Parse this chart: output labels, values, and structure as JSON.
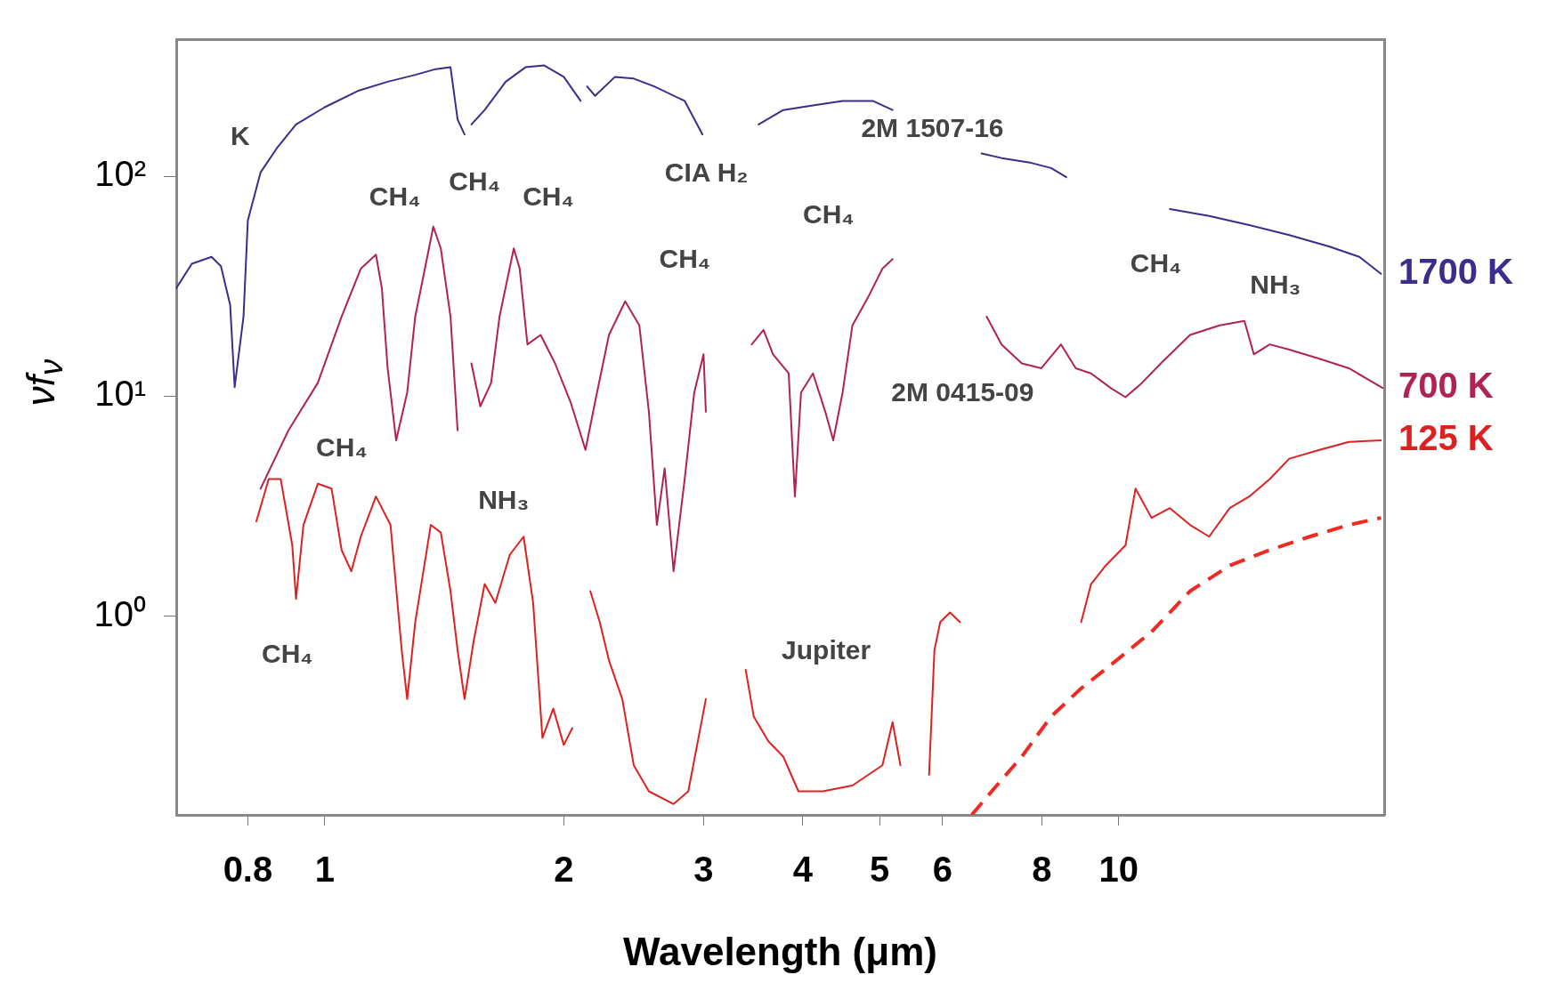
{
  "chart_data": {
    "type": "line",
    "xlabel": "Wavelength (μm)",
    "ylabel": "νf$_{ν}$",
    "log": "xy",
    "grid": false,
    "legend": "right",
    "marker": "none",
    "line_style": "solid",
    "xlim": [
      0.65,
      21.6
    ],
    "xticks": [
      0.8,
      1,
      2,
      3,
      4,
      5,
      6,
      8,
      10
    ],
    "ylim": [
      0.125,
      420
    ],
    "yticks": [
      {
        "value": 1,
        "label": "10⁰"
      },
      {
        "value": 10,
        "label": "10¹"
      },
      {
        "value": 100,
        "label": "10²"
      }
    ],
    "series": [
      {
        "name": "1700 K",
        "color": "#3b2d8c",
        "x": [
          0.65,
          0.68,
          0.72,
          0.74,
          0.76,
          0.77,
          0.79,
          0.8,
          0.83,
          0.87,
          0.92,
          1.0,
          1.1,
          1.2,
          1.3,
          1.38,
          1.44,
          1.47,
          1.5,
          null,
          1.53,
          1.59,
          1.69,
          1.79,
          1.89,
          2.0,
          2.1,
          null,
          2.14,
          2.19,
          2.32,
          2.45,
          2.6,
          2.84,
          2.99,
          null,
          3.52,
          3.78,
          4.12,
          4.49,
          4.9,
          5.19,
          null,
          6.72,
          7.12,
          7.76,
          8.22,
          8.59,
          null,
          11.6,
          13.0,
          14.6,
          16.4,
          18.4,
          20.1,
          21.4
        ],
        "values": [
          31,
          40,
          43,
          39,
          26,
          11,
          23,
          63,
          104,
          134,
          172,
          206,
          244,
          269,
          289,
          307,
          313,
          181,
          155,
          null,
          172,
          200,
          269,
          313,
          319,
          283,
          220,
          null,
          256,
          232,
          283,
          278,
          256,
          220,
          155,
          null,
          172,
          200,
          210,
          220,
          220,
          200,
          null,
          127,
          121,
          115,
          109,
          99,
          null,
          71,
          66,
          60,
          54,
          48,
          43,
          36
        ]
      },
      {
        "name": "700 K",
        "color": "#b02350",
        "x": [
          0.83,
          0.9,
          0.98,
          1.05,
          1.11,
          1.16,
          1.18,
          1.2,
          1.23,
          1.27,
          1.3,
          1.37,
          1.4,
          1.44,
          1.47,
          null,
          1.53,
          1.57,
          1.62,
          1.66,
          1.73,
          1.76,
          1.8,
          1.87,
          1.95,
          2.04,
          2.13,
          2.19,
          2.28,
          2.39,
          2.49,
          2.56,
          2.62,
          2.68,
          2.75,
          2.84,
          2.92,
          3.0,
          3.02,
          null,
          3.45,
          3.57,
          3.67,
          3.84,
          3.91,
          3.98,
          4.12,
          4.27,
          4.37,
          4.49,
          4.62,
          4.83,
          5.04,
          5.19,
          null,
          6.82,
          7.12,
          7.55,
          7.99,
          8.46,
          8.83,
          9.23,
          9.77,
          10.2,
          10.7,
          11.3,
          12.3,
          13.4,
          14.4,
          14.8,
          15.5,
          16.4,
          17.9,
          19.5,
          21.5
        ],
        "values": [
          3.8,
          7.0,
          11.5,
          23,
          38,
          44,
          31,
          13.4,
          6.3,
          10.4,
          23,
          59,
          47,
          23,
          7.0,
          null,
          14.1,
          9.0,
          11.5,
          23,
          47,
          38,
          17.2,
          19.0,
          14.1,
          9.4,
          5.7,
          9.4,
          19.0,
          27,
          21,
          8.5,
          2.6,
          4.7,
          1.6,
          4.2,
          10.4,
          15.5,
          8.5,
          null,
          17.2,
          20,
          15.5,
          12.7,
          3.5,
          10.4,
          12.7,
          8.5,
          6.3,
          10.4,
          21,
          28,
          38,
          42,
          null,
          23,
          17.2,
          14.1,
          13.4,
          17.2,
          13.4,
          12.7,
          10.9,
          9.9,
          11.5,
          14.1,
          19.0,
          21,
          22,
          15.5,
          17.2,
          16.3,
          14.8,
          13.4,
          10.9
        ]
      },
      {
        "name": "125 K",
        "color": "#dc2220",
        "x": [
          0.82,
          0.85,
          0.88,
          0.91,
          0.92,
          0.94,
          0.98,
          1.02,
          1.05,
          1.08,
          1.11,
          1.16,
          1.21,
          1.25,
          1.27,
          1.3,
          1.36,
          1.4,
          1.44,
          1.47,
          1.5,
          1.54,
          1.59,
          1.64,
          1.71,
          1.78,
          1.83,
          1.88,
          1.94,
          2.0,
          2.05,
          null,
          2.16,
          2.22,
          2.28,
          2.37,
          2.45,
          2.56,
          2.75,
          2.87,
          3.02,
          null,
          3.39,
          3.47,
          3.62,
          3.78,
          3.95,
          4.24,
          4.62,
          5.04,
          5.19,
          5.31,
          null,
          5.77,
          5.86,
          5.96,
          6.13,
          6.31,
          null,
          8.97,
          9.23,
          9.63,
          10.2,
          10.5,
          11.0,
          11.6,
          12.3,
          13.0,
          13.8,
          14.6,
          15.5,
          16.4,
          17.9,
          19.5,
          21.4
        ],
        "values": [
          2.7,
          4.2,
          4.2,
          2.1,
          1.2,
          2.6,
          4.0,
          3.8,
          2.0,
          1.6,
          2.3,
          3.5,
          2.6,
          0.7,
          0.42,
          0.94,
          2.6,
          2.4,
          1.3,
          0.7,
          0.42,
          0.77,
          1.4,
          1.15,
          1.9,
          2.3,
          1.15,
          0.28,
          0.38,
          0.26,
          0.31,
          null,
          1.3,
          0.94,
          0.63,
          0.42,
          0.21,
          0.16,
          0.14,
          0.16,
          0.42,
          null,
          0.57,
          0.35,
          0.27,
          0.23,
          0.16,
          0.16,
          0.17,
          0.21,
          0.33,
          0.21,
          null,
          0.19,
          0.7,
          0.94,
          1.04,
          0.94,
          null,
          0.94,
          1.4,
          1.7,
          2.1,
          3.8,
          2.8,
          3.1,
          2.6,
          2.3,
          3.1,
          3.5,
          4.2,
          5.2,
          5.7,
          6.2,
          6.3
        ]
      },
      {
        "color": "#ee2a22",
        "line_style": "dashed",
        "x": [
          6.53,
          6.92,
          7.55,
          8.22,
          8.97,
          9.77,
          11.0,
          12.3,
          13.8,
          15.5,
          17.4,
          19.5,
          21.4
        ],
        "values": [
          0.125,
          0.16,
          0.23,
          0.35,
          0.47,
          0.6,
          0.85,
          1.3,
          1.7,
          2.0,
          2.3,
          2.6,
          2.8
        ]
      }
    ],
    "annotations": [
      "K",
      "CH₄",
      "CH₄",
      "CH₄",
      "CIA H₂",
      "CH₄",
      "CH₄",
      "CH₄",
      "NH₃",
      "CH₄",
      "NH₃",
      "CH₄",
      "2M 1507-16",
      "2M 0415-09",
      "Jupiter"
    ]
  }
}
